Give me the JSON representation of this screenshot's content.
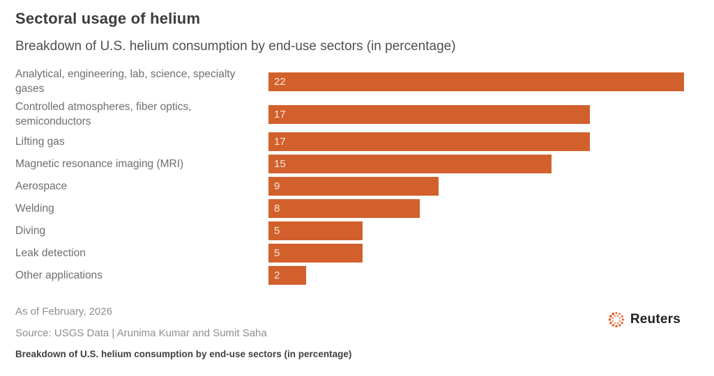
{
  "header": {
    "title": "Sectoral usage of helium",
    "subtitle": "Breakdown of U.S. helium consumption by end-use sectors (in percentage)"
  },
  "chart_data": {
    "type": "bar",
    "orientation": "horizontal",
    "title": "Sectoral usage of helium",
    "subtitle": "Breakdown of U.S. helium consumption by end-use sectors (in percentage)",
    "categories": [
      "Analytical, engineering, lab, science, specialty gases",
      "Controlled atmospheres, fiber optics, semiconductors",
      "Lifting gas",
      "Magnetic resonance imaging (MRI)",
      "Aerospace",
      "Welding",
      "Diving",
      "Leak detection",
      "Other applications"
    ],
    "values": [
      22,
      17,
      17,
      15,
      9,
      8,
      5,
      5,
      2
    ],
    "xlabel": "",
    "ylabel": "",
    "xlim": [
      0,
      22
    ],
    "grid": false,
    "legend": false,
    "value_labels": "inside-left"
  },
  "footer": {
    "as_of": "As of February, 2026",
    "source": "Source: USGS Data | Arunima Kumar and Sumit Saha",
    "caption": "Breakdown of U.S. helium consumption by end-use sectors (in percentage)",
    "logo_text": "Reuters"
  },
  "colors": {
    "bar": "#d2602c",
    "bar_value_text": "#f6e8dd",
    "logo": "#e8541f"
  }
}
